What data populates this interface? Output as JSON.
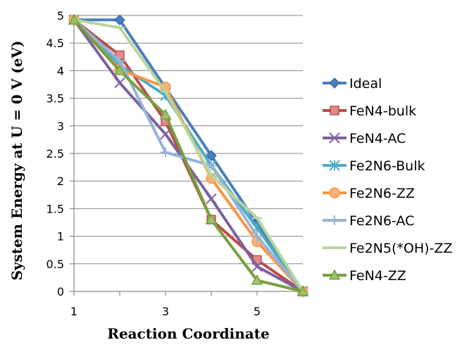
{
  "chart_data": {
    "type": "line",
    "xlabel": "Reaction Coordinate",
    "ylabel": "System Energy at U = 0 V (eV)",
    "x": [
      1,
      2,
      3,
      4,
      5,
      6
    ],
    "xticks": [
      "1",
      "3",
      "5"
    ],
    "xtick_values": [
      1,
      3,
      5
    ],
    "ylim": [
      0,
      5
    ],
    "yticks": [
      "0",
      "0.5",
      "1",
      "1.5",
      "2",
      "2.5",
      "3",
      "3.5",
      "4",
      "4.5",
      "5"
    ],
    "ytick_values": [
      0,
      0.5,
      1,
      1.5,
      2,
      2.5,
      3,
      3.5,
      4,
      4.5,
      5
    ],
    "grid": "horizontal",
    "legend_position": "right",
    "series": [
      {
        "name": "Ideal",
        "color": "#4A7EBB",
        "marker": "diamond",
        "values": [
          4.92,
          4.92,
          3.69,
          2.46,
          1.23,
          0
        ]
      },
      {
        "name": "FeN4-bulk",
        "color": "#BE4B48",
        "marker": "square",
        "values": [
          4.92,
          4.28,
          3.08,
          1.3,
          0.57,
          0
        ]
      },
      {
        "name": "FeN4-AC",
        "color": "#7D60A0",
        "marker": "x",
        "values": [
          4.92,
          3.78,
          2.85,
          1.68,
          0.45,
          0
        ]
      },
      {
        "name": "Fe2N6-Bulk",
        "color": "#4BACC6",
        "marker": "asterisk",
        "values": [
          4.92,
          4.1,
          3.55,
          2.28,
          1.15,
          0
        ]
      },
      {
        "name": "Fe2N6-ZZ",
        "color": "#F79646",
        "marker": "circle",
        "values": [
          4.92,
          4.02,
          3.7,
          2.05,
          0.9,
          0
        ]
      },
      {
        "name": "Fe2N6-AC",
        "color": "#95B3D7",
        "marker": "plus",
        "values": [
          4.92,
          4.18,
          2.52,
          2.28,
          1.0,
          0
        ]
      },
      {
        "name": "Fe2N5(*OH)-ZZ",
        "color": "#B9D59A",
        "marker": "dash",
        "values": [
          4.92,
          4.78,
          3.62,
          2.1,
          1.33,
          0
        ]
      },
      {
        "name": "FeN4-ZZ",
        "color": "#76A03C",
        "marker": "triangle",
        "values": [
          4.92,
          4.0,
          3.2,
          1.3,
          0.2,
          0
        ]
      }
    ]
  }
}
